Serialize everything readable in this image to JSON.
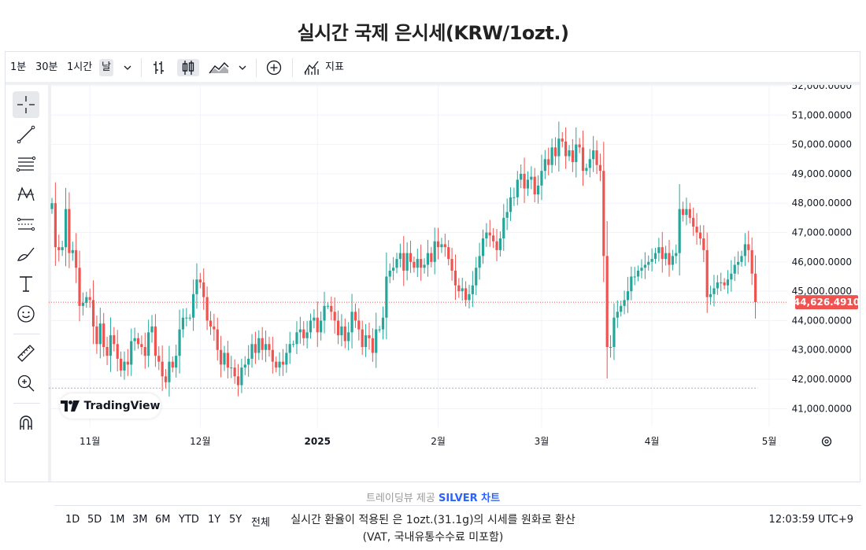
{
  "page_title": "실시간 국제 은시세(KRW/1ozt.)",
  "toolbar": {
    "intervals": [
      "1분",
      "30분",
      "1시간",
      "날"
    ],
    "active_interval": "날",
    "indicators_label": "지표"
  },
  "bottom_bar": {
    "ranges": [
      "1D",
      "5D",
      "1M",
      "3M",
      "6M",
      "YTD",
      "1Y",
      "5Y",
      "전체"
    ],
    "clock": "12:03:59 UTC+9"
  },
  "logo_text": "TradingView",
  "credit": {
    "prefix": "트레이딩뷰 제공",
    "link": "SILVER 차트"
  },
  "notes": [
    "실시간 환율이 적용된 은 1ozt.(31.1g)의 시세를 원화로 환산",
    "(VAT, 국내유통수수료 미포함)"
  ],
  "colors": {
    "up": "#26a69a",
    "down": "#ef5350",
    "price_line": "#ef5350",
    "grid": "#f0f3fa"
  },
  "icons": [
    "crosshair-icon",
    "trend-line-icon",
    "fib-icon",
    "pattern-icon",
    "measure-bars-icon",
    "brush-icon",
    "text-icon",
    "emoji-icon",
    "ruler-icon",
    "zoom-icon",
    "magnet-icon"
  ],
  "chart_data": {
    "type": "candlestick",
    "y_range": [
      40500,
      52000
    ],
    "y_ticks": [
      52000,
      51000,
      50000,
      49000,
      48000,
      47000,
      46000,
      45000,
      44000,
      43000,
      42000,
      41000
    ],
    "y_tick_labels": [
      "52,000.0000",
      "51,000.0000",
      "50,000.0000",
      "49,000.0000",
      "48,000.0000",
      "47,000.0000",
      "46,000.0000",
      "45,000.0000",
      "44,000.0000",
      "43,000.0000",
      "42,000.0000",
      "41,000.0000"
    ],
    "x_labels": [
      {
        "label": "11월",
        "index": 11
      },
      {
        "label": "12월",
        "index": 43
      },
      {
        "label": "2025",
        "index": 77
      },
      {
        "label": "2월",
        "index": 112
      },
      {
        "label": "3월",
        "index": 142
      },
      {
        "label": "4월",
        "index": 174
      },
      {
        "label": "5월",
        "index": 208
      }
    ],
    "current_price": 44626.491,
    "current_price_label": "44,626.4910",
    "low_line": 41700,
    "close_series": [
      48000,
      46500,
      46400,
      46500,
      47800,
      46300,
      46400,
      45800,
      44500,
      44600,
      44800,
      44700,
      43800,
      43200,
      43900,
      43100,
      42800,
      43500,
      43200,
      42700,
      42300,
      42600,
      42500,
      43300,
      43400,
      43200,
      43100,
      42800,
      43600,
      43800,
      42800,
      42600,
      42100,
      41900,
      42600,
      42400,
      42800,
      43700,
      44100,
      44100,
      44100,
      44900,
      45400,
      45300,
      44800,
      44000,
      43800,
      43700,
      43000,
      42500,
      42900,
      42400,
      42400,
      42100,
      41800,
      42400,
      42500,
      42700,
      43200,
      42900,
      43400,
      43000,
      43200,
      43000,
      42600,
      42400,
      42600,
      42500,
      42900,
      43200,
      43200,
      43600,
      43700,
      43400,
      43600,
      44000,
      44100,
      43600,
      44000,
      44500,
      44500,
      44300,
      44000,
      43500,
      43800,
      43300,
      43600,
      44300,
      44000,
      43700,
      43100,
      43500,
      43400,
      42900,
      43700,
      43700,
      44100,
      45500,
      45700,
      45800,
      46100,
      46300,
      45700,
      46300,
      46000,
      45800,
      46100,
      45800,
      45900,
      46300,
      46000,
      46700,
      46500,
      46600,
      46500,
      46100,
      45700,
      45200,
      45000,
      45100,
      44700,
      44900,
      45200,
      45800,
      46200,
      46800,
      47000,
      46900,
      46700,
      46400,
      46800,
      47500,
      47700,
      48200,
      48200,
      48800,
      49000,
      48500,
      48800,
      48900,
      48300,
      48600,
      49100,
      49500,
      49300,
      49900,
      49600,
      50200,
      50100,
      49600,
      49800,
      49400,
      50000,
      49900,
      49100,
      49200,
      49500,
      49800,
      49300,
      49100,
      46200,
      43100,
      43100,
      44100,
      44300,
      44500,
      44700,
      45000,
      45500,
      45500,
      45700,
      45800,
      45900,
      46000,
      46100,
      46300,
      46500,
      46100,
      46300,
      45900,
      46200,
      46300,
      47800,
      47600,
      47800,
      47500,
      47200,
      47000,
      46800,
      46400,
      44800,
      44900,
      45100,
      45300,
      45300,
      45200,
      45400,
      45600,
      45900,
      46000,
      46200,
      46600,
      46400,
      45600,
      44626.491
    ]
  }
}
